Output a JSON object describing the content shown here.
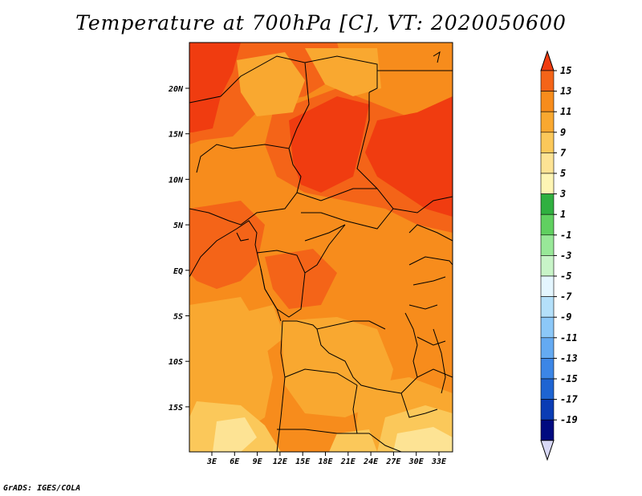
{
  "title": "Temperature at 700hPa [C], VT: 2020050600",
  "credit": "GrADS: IGES/COLA",
  "map": {
    "lat_labels": [
      "20N",
      "15N",
      "10N",
      "5N",
      "EQ",
      "5S",
      "10S",
      "15S"
    ],
    "lon_labels": [
      "3E",
      "6E",
      "9E",
      "12E",
      "15E",
      "18E",
      "21E",
      "24E",
      "27E",
      "30E",
      "33E"
    ],
    "colors": {
      "hot_core": "#f03c10",
      "hot": "#f46418",
      "warm": "#f78c1c",
      "mild": "#f9a830",
      "cool": "#fbc85a",
      "pale": "#fde394",
      "border": "#000000"
    }
  },
  "legend": {
    "labels": [
      "15",
      "13",
      "11",
      "9",
      "7",
      "5",
      "3",
      "1",
      "-1",
      "-3",
      "-5",
      "-7",
      "-9",
      "-11",
      "-13",
      "-15",
      "-17",
      "-19"
    ],
    "colors": [
      "#f03c10",
      "#f46418",
      "#f78c1c",
      "#f9a830",
      "#fbc85a",
      "#fde394",
      "#fef5b4",
      "#30b040",
      "#60d060",
      "#98e898",
      "#c8f4c8",
      "#e4f6ff",
      "#b4e0fa",
      "#8cc8f8",
      "#64aaf2",
      "#3c86e6",
      "#1e64d2",
      "#0a3cb4",
      "#000a80",
      "#d8d8f6"
    ]
  }
}
